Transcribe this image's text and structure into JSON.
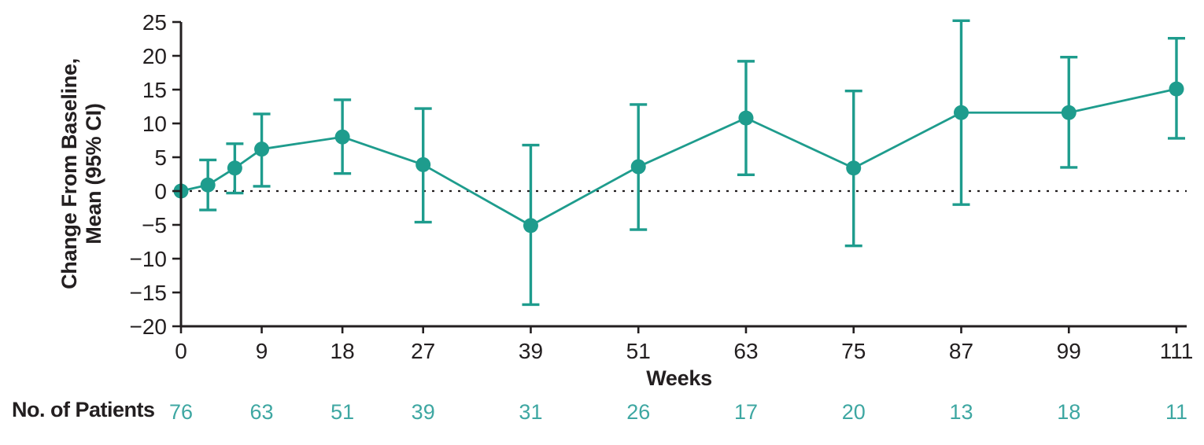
{
  "chart_data": {
    "type": "line",
    "title": "",
    "xlabel": "Weeks",
    "ylabel_line1": "Change From Baseline,",
    "ylabel_line2": "Mean (95% CI)",
    "xlim": [
      0,
      111
    ],
    "ylim": [
      -20,
      25
    ],
    "x_ticks": [
      0,
      9,
      18,
      27,
      39,
      51,
      63,
      75,
      87,
      99,
      111
    ],
    "x_tick_labels": [
      "0",
      "9",
      "18",
      "27",
      "39",
      "51",
      "63",
      "75",
      "87",
      "99",
      "111"
    ],
    "y_ticks": [
      25,
      20,
      15,
      10,
      5,
      0,
      -5,
      -10,
      -15,
      -20
    ],
    "y_tick_labels": [
      "25",
      "20",
      "15",
      "10",
      "5",
      "0",
      "−5",
      "−10",
      "−15",
      "−20"
    ],
    "zero_reference_line": {
      "y": 0,
      "style": "dotted"
    },
    "grid": false,
    "legend": "none",
    "series": [
      {
        "name": "Change from baseline, mean (95% CI)",
        "x": [
          0,
          3,
          6,
          9,
          18,
          27,
          39,
          51,
          63,
          75,
          87,
          99,
          111
        ],
        "mean": [
          0,
          0.9,
          3.4,
          6.2,
          8.0,
          3.9,
          -5.1,
          3.6,
          10.8,
          3.4,
          11.6,
          11.6,
          15.1
        ],
        "ci_lower": [
          null,
          -2.8,
          -0.3,
          0.7,
          2.6,
          -4.6,
          -16.8,
          -5.7,
          2.4,
          -8.1,
          -2.0,
          3.5,
          7.8
        ],
        "ci_upper": [
          null,
          4.6,
          7.0,
          11.4,
          13.5,
          12.2,
          6.8,
          12.8,
          19.2,
          14.8,
          25.2,
          19.8,
          22.6
        ]
      }
    ],
    "colors": {
      "series": "#1e9c8d",
      "axis": "#231f20",
      "patients_text": "#3ea7a2"
    }
  },
  "patients": {
    "label": "No. of Patients",
    "weeks": [
      0,
      9,
      18,
      27,
      39,
      51,
      63,
      75,
      87,
      99,
      111
    ],
    "counts": [
      "76",
      "63",
      "51",
      "39",
      "31",
      "26",
      "17",
      "20",
      "13",
      "18",
      "11"
    ]
  }
}
